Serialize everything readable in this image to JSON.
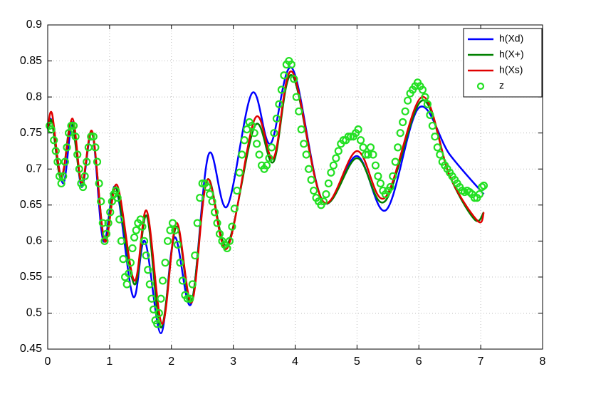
{
  "chart_data": {
    "type": "line",
    "xlim": [
      0,
      8
    ],
    "xticks": [
      0,
      1,
      2,
      3,
      4,
      5,
      6,
      7,
      8
    ],
    "ylim": [
      0.45,
      0.9
    ],
    "yticks": [
      0.45,
      0.5,
      0.55,
      0.6,
      0.65,
      0.7,
      0.75,
      0.8,
      0.85,
      0.9
    ],
    "grid": true,
    "legend": "northeast",
    "series": [
      {
        "name": "h(Xd)",
        "color": "#0000ff",
        "style": "line",
        "x": [
          0.02,
          0.07,
          0.25,
          0.4,
          0.55,
          0.72,
          0.9,
          1.1,
          1.38,
          1.57,
          1.83,
          2.05,
          2.32,
          2.6,
          2.9,
          3.3,
          3.6,
          3.95,
          4.45,
          5.0,
          5.47,
          6.0,
          6.5,
          7.05
        ],
        "values": [
          0.76,
          0.765,
          0.68,
          0.765,
          0.675,
          0.75,
          0.6,
          0.675,
          0.523,
          0.6,
          0.472,
          0.605,
          0.513,
          0.72,
          0.648,
          0.805,
          0.735,
          0.84,
          0.655,
          0.718,
          0.643,
          0.785,
          0.72,
          0.665
        ]
      },
      {
        "name": "h(X+)",
        "color": "#008000",
        "style": "line",
        "x": [
          0.02,
          0.07,
          0.22,
          0.38,
          0.55,
          0.72,
          0.92,
          1.1,
          1.4,
          1.6,
          1.83,
          2.08,
          2.32,
          2.58,
          2.9,
          3.35,
          3.65,
          3.95,
          4.45,
          5.0,
          5.45,
          6.05,
          6.5,
          6.9,
          7.05
        ],
        "values": [
          0.755,
          0.765,
          0.685,
          0.765,
          0.68,
          0.75,
          0.6,
          0.675,
          0.54,
          0.635,
          0.48,
          0.62,
          0.515,
          0.685,
          0.595,
          0.76,
          0.71,
          0.83,
          0.655,
          0.715,
          0.655,
          0.795,
          0.69,
          0.63,
          0.64
        ]
      },
      {
        "name": "h(Xs)",
        "color": "#e00000",
        "style": "line",
        "x": [
          0.0,
          0.07,
          0.22,
          0.4,
          0.55,
          0.72,
          0.92,
          1.12,
          1.4,
          1.6,
          1.85,
          2.08,
          2.33,
          2.58,
          2.9,
          3.35,
          3.65,
          3.95,
          4.45,
          5.0,
          5.45,
          6.05,
          6.5,
          6.95,
          7.05
        ],
        "values": [
          0.755,
          0.777,
          0.69,
          0.77,
          0.68,
          0.752,
          0.6,
          0.678,
          0.545,
          0.642,
          0.485,
          0.625,
          0.515,
          0.685,
          0.59,
          0.77,
          0.715,
          0.835,
          0.655,
          0.725,
          0.66,
          0.8,
          0.69,
          0.628,
          0.64
        ]
      },
      {
        "name": "z",
        "color": "#22e022",
        "style": "marker",
        "x": [
          0.03,
          0.06,
          0.1,
          0.13,
          0.16,
          0.19,
          0.22,
          0.25,
          0.28,
          0.31,
          0.34,
          0.38,
          0.42,
          0.45,
          0.48,
          0.51,
          0.54,
          0.57,
          0.6,
          0.63,
          0.66,
          0.7,
          0.74,
          0.77,
          0.8,
          0.83,
          0.86,
          0.89,
          0.92,
          0.95,
          0.98,
          1.01,
          1.04,
          1.07,
          1.1,
          1.13,
          1.16,
          1.19,
          1.22,
          1.25,
          1.28,
          1.31,
          1.34,
          1.37,
          1.4,
          1.43,
          1.46,
          1.5,
          1.53,
          1.56,
          1.59,
          1.62,
          1.65,
          1.68,
          1.71,
          1.74,
          1.77,
          1.8,
          1.83,
          1.86,
          1.9,
          1.94,
          1.98,
          2.02,
          2.06,
          2.1,
          2.14,
          2.18,
          2.22,
          2.26,
          2.3,
          2.34,
          2.38,
          2.42,
          2.46,
          2.5,
          2.54,
          2.58,
          2.62,
          2.66,
          2.7,
          2.74,
          2.78,
          2.82,
          2.86,
          2.9,
          2.94,
          2.98,
          3.02,
          3.06,
          3.1,
          3.14,
          3.18,
          3.22,
          3.26,
          3.3,
          3.34,
          3.38,
          3.42,
          3.46,
          3.5,
          3.54,
          3.58,
          3.62,
          3.66,
          3.7,
          3.74,
          3.78,
          3.82,
          3.86,
          3.9,
          3.94,
          3.98,
          4.02,
          4.06,
          4.1,
          4.14,
          4.18,
          4.22,
          4.26,
          4.3,
          4.34,
          4.38,
          4.42,
          4.46,
          4.5,
          4.54,
          4.58,
          4.62,
          4.66,
          4.7,
          4.74,
          4.78,
          4.82,
          4.86,
          4.9,
          4.94,
          4.98,
          5.02,
          5.06,
          5.1,
          5.14,
          5.18,
          5.22,
          5.26,
          5.3,
          5.34,
          5.38,
          5.42,
          5.46,
          5.5,
          5.54,
          5.58,
          5.62,
          5.66,
          5.7,
          5.74,
          5.78,
          5.82,
          5.86,
          5.9,
          5.94,
          5.98,
          6.02,
          6.06,
          6.1,
          6.14,
          6.18,
          6.22,
          6.26,
          6.3,
          6.34,
          6.38,
          6.42,
          6.46,
          6.5,
          6.54,
          6.58,
          6.62,
          6.66,
          6.7,
          6.74,
          6.78,
          6.82,
          6.86,
          6.9,
          6.94,
          6.98,
          7.02,
          7.05
        ],
        "values": [
          0.76,
          0.755,
          0.74,
          0.725,
          0.71,
          0.69,
          0.68,
          0.69,
          0.71,
          0.73,
          0.75,
          0.76,
          0.76,
          0.745,
          0.72,
          0.7,
          0.68,
          0.675,
          0.69,
          0.71,
          0.73,
          0.745,
          0.745,
          0.73,
          0.71,
          0.68,
          0.655,
          0.625,
          0.6,
          0.61,
          0.625,
          0.64,
          0.655,
          0.665,
          0.67,
          0.66,
          0.63,
          0.6,
          0.575,
          0.55,
          0.54,
          0.555,
          0.57,
          0.59,
          0.605,
          0.615,
          0.625,
          0.63,
          0.62,
          0.6,
          0.58,
          0.56,
          0.54,
          0.52,
          0.505,
          0.49,
          0.485,
          0.5,
          0.52,
          0.545,
          0.57,
          0.6,
          0.615,
          0.625,
          0.615,
          0.595,
          0.57,
          0.545,
          0.525,
          0.52,
          0.52,
          0.54,
          0.58,
          0.625,
          0.66,
          0.68,
          0.68,
          0.675,
          0.665,
          0.655,
          0.64,
          0.625,
          0.61,
          0.6,
          0.595,
          0.59,
          0.6,
          0.62,
          0.645,
          0.67,
          0.695,
          0.72,
          0.74,
          0.755,
          0.765,
          0.76,
          0.75,
          0.735,
          0.72,
          0.705,
          0.7,
          0.705,
          0.715,
          0.73,
          0.75,
          0.77,
          0.79,
          0.81,
          0.83,
          0.845,
          0.85,
          0.845,
          0.825,
          0.8,
          0.78,
          0.755,
          0.735,
          0.72,
          0.7,
          0.685,
          0.67,
          0.66,
          0.655,
          0.65,
          0.655,
          0.665,
          0.68,
          0.695,
          0.705,
          0.715,
          0.725,
          0.735,
          0.74,
          0.74,
          0.745,
          0.745,
          0.745,
          0.75,
          0.755,
          0.74,
          0.73,
          0.72,
          0.72,
          0.73,
          0.72,
          0.705,
          0.69,
          0.68,
          0.67,
          0.665,
          0.67,
          0.675,
          0.69,
          0.71,
          0.73,
          0.75,
          0.765,
          0.78,
          0.795,
          0.805,
          0.81,
          0.815,
          0.82,
          0.815,
          0.81,
          0.8,
          0.79,
          0.775,
          0.76,
          0.745,
          0.73,
          0.72,
          0.71,
          0.705,
          0.7,
          0.695,
          0.69,
          0.685,
          0.68,
          0.675,
          0.67,
          0.668,
          0.67,
          0.668,
          0.665,
          0.66,
          0.66,
          0.665,
          0.675,
          0.677
        ]
      }
    ]
  }
}
